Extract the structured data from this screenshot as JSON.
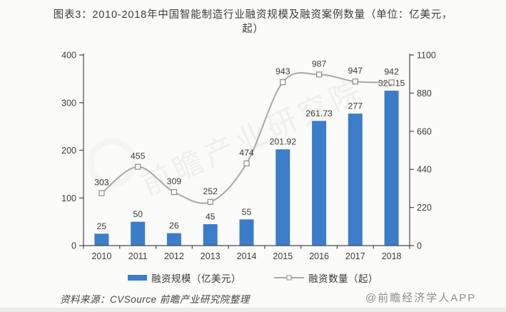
{
  "title": "图表3：2010-2018年中国智能制造行业融资规模及融资案例数量（单位：亿美元，起）",
  "chart_data": {
    "type": "bar",
    "subtype": "bar-line-combo",
    "categories": [
      "2010",
      "2011",
      "2012",
      "2013",
      "2014",
      "2015",
      "2016",
      "2017",
      "2018"
    ],
    "series": [
      {
        "name": "融资规模（亿美元）",
        "type": "bar",
        "axis": "left",
        "color": "#3c7dca",
        "values": [
          25,
          50,
          26,
          45,
          55,
          201.92,
          261.73,
          277,
          325.15
        ],
        "labels": [
          "25",
          "50",
          "26",
          "45",
          "55",
          "201.92",
          "261.73",
          "277",
          "325.15"
        ]
      },
      {
        "name": "融资数量（起）",
        "type": "line",
        "axis": "right",
        "color": "#a8a8a8",
        "marker": "open-square",
        "marker_fill": "#fdfdfd",
        "marker_stroke": "#8c8c8c",
        "values": [
          303,
          455,
          309,
          252,
          474,
          943,
          987,
          947,
          942
        ],
        "labels": [
          "303",
          "455",
          "309",
          "252",
          "474",
          "943",
          "987",
          "947",
          "942"
        ]
      }
    ],
    "left_axis": {
      "min": 0,
      "max": 400,
      "ticks": [
        0,
        100,
        200,
        300,
        400
      ]
    },
    "right_axis": {
      "min": 0,
      "max": 1100,
      "ticks": [
        0,
        220,
        440,
        660,
        880,
        1100
      ]
    },
    "grid": false,
    "legend_position": "bottom",
    "axis_color": "#4a4a4a"
  },
  "footer": {
    "source": "资料来源：CVSource  前瞻产业研究院整理",
    "credit": "@前瞻经济学人APP"
  },
  "watermark": "前瞻产业研究院"
}
